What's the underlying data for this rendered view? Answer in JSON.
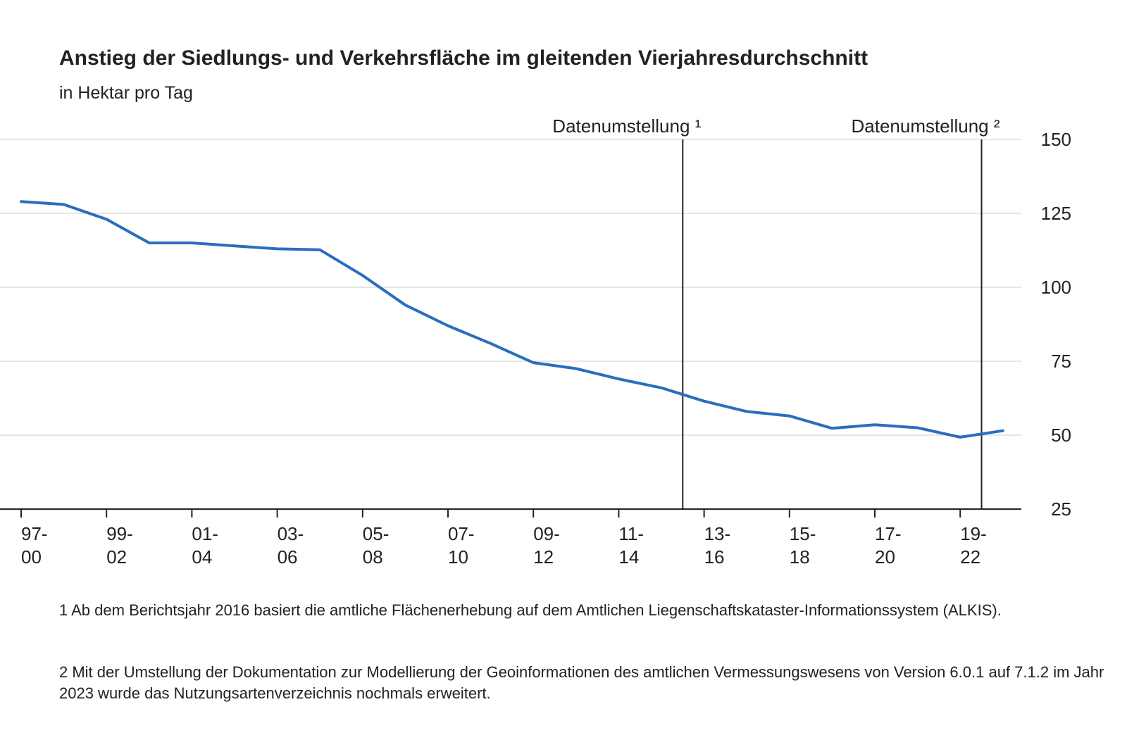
{
  "chart_data": {
    "type": "line",
    "title": "Anstieg der Siedlungs- und Verkehrsfläche im gleitenden Vierjahresdurchschnitt",
    "subtitle": "in Hektar pro Tag",
    "xlabel": "",
    "ylabel": "",
    "ylim": [
      25,
      150
    ],
    "yticks": [
      "150",
      "125",
      "100",
      "75",
      "50",
      "25"
    ],
    "ytick_values": [
      150,
      125,
      100,
      75,
      50,
      25
    ],
    "grid": true,
    "categories": [
      "1997-2000",
      "1998-2001",
      "1999-2002",
      "2000-2003",
      "2001-2004",
      "2002-2005",
      "2003-2006",
      "2004-2007",
      "2005-2008",
      "2006-2009",
      "2007-2010",
      "2008-2011",
      "2009-2012",
      "2010-2013",
      "2011-2014",
      "2012-2015",
      "2013-2016",
      "2014-2017",
      "2015-2018",
      "2016-2019",
      "2017-2020",
      "2018-2021",
      "2019-2022",
      "2020-2023"
    ],
    "x_tick_labels": [
      {
        "top": "97-",
        "bottom": "00",
        "index": 0
      },
      {
        "top": "99-",
        "bottom": "02",
        "index": 2
      },
      {
        "top": "01-",
        "bottom": "04",
        "index": 4
      },
      {
        "top": "03-",
        "bottom": "06",
        "index": 6
      },
      {
        "top": "05-",
        "bottom": "08",
        "index": 8
      },
      {
        "top": "07-",
        "bottom": "10",
        "index": 10
      },
      {
        "top": "09-",
        "bottom": "12",
        "index": 12
      },
      {
        "top": "11-",
        "bottom": "14",
        "index": 14
      },
      {
        "top": "13-",
        "bottom": "16",
        "index": 16
      },
      {
        "top": "15-",
        "bottom": "18",
        "index": 18
      },
      {
        "top": "17-",
        "bottom": "20",
        "index": 20
      },
      {
        "top": "19-",
        "bottom": "22",
        "index": 22
      }
    ],
    "series": [
      {
        "values": [
          129,
          128,
          123,
          115,
          115,
          114,
          113,
          112.7,
          104,
          94,
          87,
          81,
          74.5,
          72.5,
          69,
          66,
          61.5,
          58,
          56.5,
          52.3,
          53.5,
          52.5,
          49.3,
          51.5
        ],
        "color": "#2a6ebe"
      }
    ],
    "annotations": [
      {
        "label": "Datenumstellung ¹",
        "position": 15.5
      },
      {
        "label": "Datenumstellung ²",
        "position": 22.5
      }
    ]
  },
  "footnotes": [
    "1 Ab dem Berichtsjahr 2016 basiert die amtliche Flächenerhebung auf dem Amtlichen Liegenschaftskataster-Informationssystem (ALKIS).",
    "2 Mit der Umstellung der Dokumentation zur Modellierung der Geoinformationen des amtlichen Vermessungswesens von Version 6.0.1 auf 7.1.2 im Jahr 2023 wurde das Nutzungsartenverzeichnis nochmals erweitert."
  ]
}
